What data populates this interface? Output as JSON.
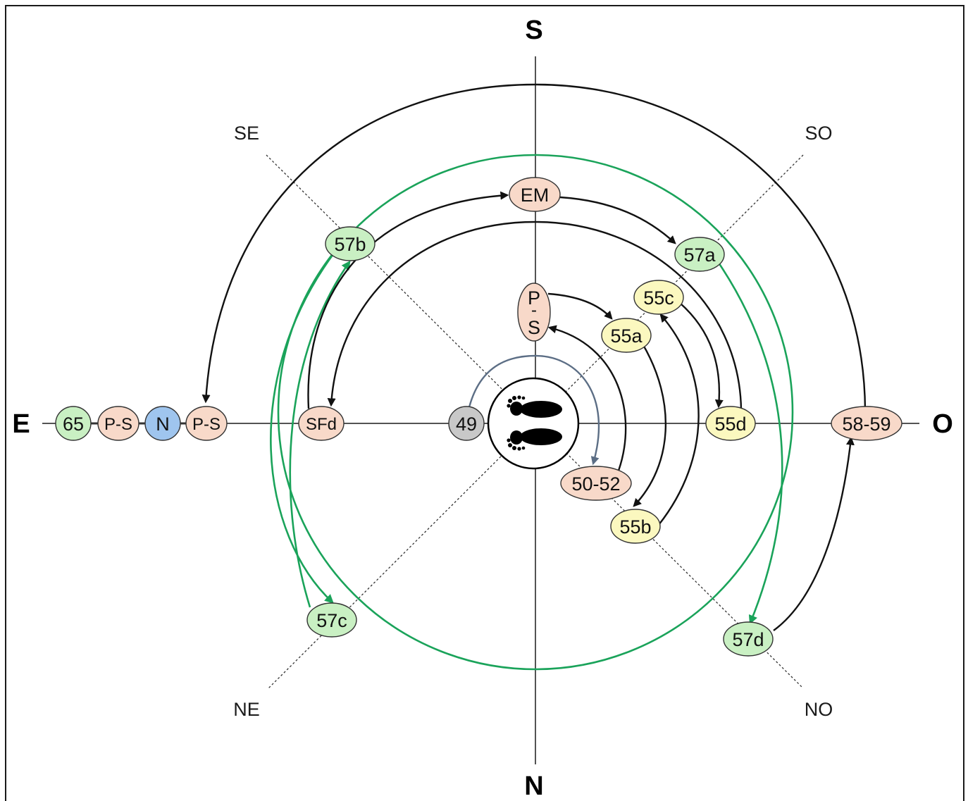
{
  "colors": {
    "green": "#c9f0c3",
    "peach": "#f8d9c9",
    "blue": "#9fc5ee",
    "yellow": "#fbf8bf",
    "grey": "#c8c8c8",
    "green_arrow": "#1aa35a",
    "grey_arrow": "#5c6e85",
    "black_arrow": "#111111"
  },
  "compass": {
    "north": "N",
    "south": "S",
    "east": "E",
    "west": "O",
    "southeast": "SE",
    "southwest": "SO",
    "northeast": "NE",
    "northwest": "NO"
  },
  "center": {
    "icon": "footprints-icon"
  },
  "nodes": {
    "n65": {
      "label": "65",
      "color": "green"
    },
    "ps_east_1": {
      "label": "P-S",
      "color": "peach"
    },
    "n_blue": {
      "label": "N",
      "color": "blue"
    },
    "ps_east_2": {
      "label": "P-S",
      "color": "peach"
    },
    "sfd": {
      "label": "SFd",
      "color": "peach"
    },
    "n49": {
      "label": "49",
      "color": "grey"
    },
    "em": {
      "label": "EM",
      "color": "peach"
    },
    "ps_center_top": "P",
    "ps_center_mid": "-",
    "ps_center_bottom": "S",
    "n55a": {
      "label": "55a",
      "color": "yellow"
    },
    "n55b": {
      "label": "55b",
      "color": "yellow"
    },
    "n55c": {
      "label": "55c",
      "color": "yellow"
    },
    "n55d": {
      "label": "55d",
      "color": "yellow"
    },
    "n50_52": {
      "label": "50-52",
      "color": "peach"
    },
    "n57a": {
      "label": "57a",
      "color": "green"
    },
    "n57b": {
      "label": "57b",
      "color": "green"
    },
    "n57c": {
      "label": "57c",
      "color": "green"
    },
    "n57d": {
      "label": "57d",
      "color": "green"
    },
    "n58_59": {
      "label": "58-59",
      "color": "peach"
    }
  }
}
